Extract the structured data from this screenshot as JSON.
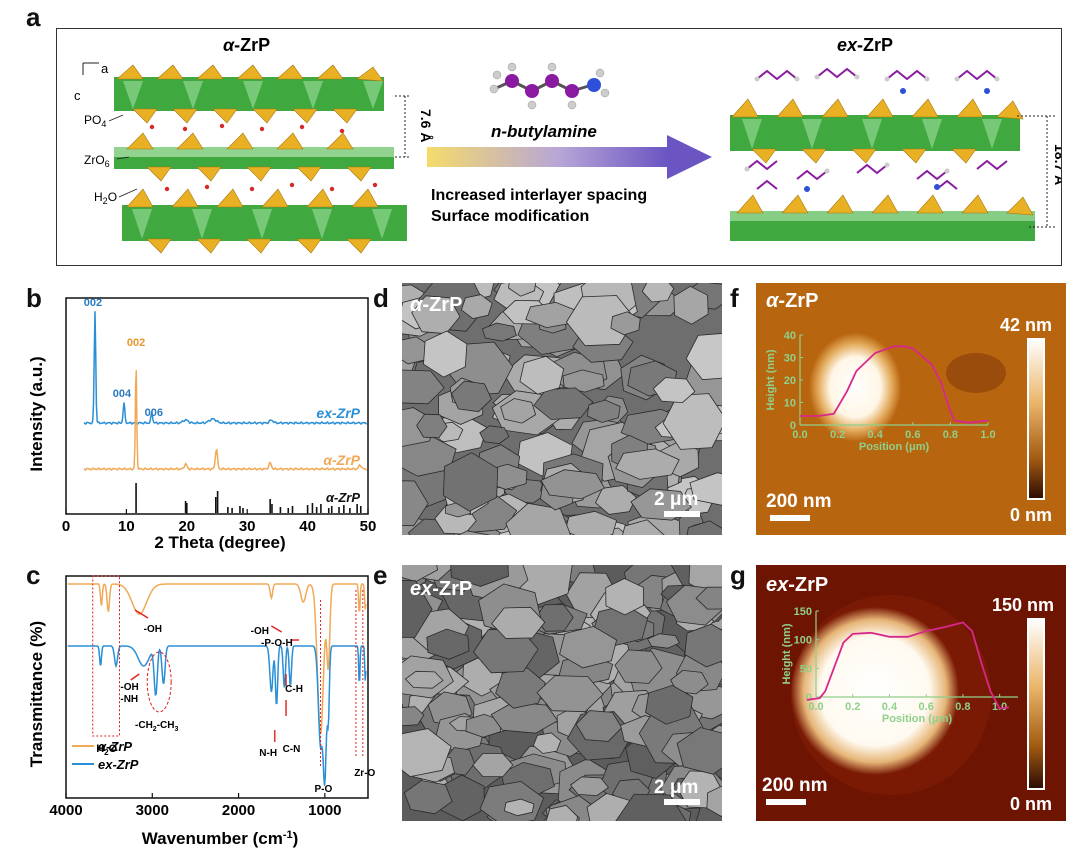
{
  "panel_letters": {
    "a": "a",
    "b": "b",
    "c": "c",
    "d": "d",
    "e": "e",
    "f": "f",
    "g": "g"
  },
  "panel_a": {
    "left_title": "α-ZrP",
    "right_title": "ex-ZrP",
    "axis_c": "c",
    "axis_a": "a",
    "label_po4": "PO",
    "label_po4_sub": "4",
    "label_zro6": "ZrO",
    "label_zro6_sub": "6",
    "label_h2o": "H",
    "label_h2o_sub": "2",
    "label_h2o_end": "O",
    "spacing_left": "7.6 Å",
    "spacing_right": "18.7 Å",
    "reagent": "n-butylamine",
    "arrow_line1": "Increased interlayer spacing",
    "arrow_line2": "Surface modification"
  },
  "panel_b": {
    "xlabel": "2 Theta (degree)",
    "ylabel": "Intensity (a.u.)",
    "peak_labels": {
      "ex_002": "002",
      "ex_004": "004",
      "ex_006": "006",
      "alpha_002": "002"
    },
    "series_labels": {
      "ex": "ex-ZrP",
      "alpha": "α-ZrP",
      "ref": "α-ZrP"
    }
  },
  "panel_c": {
    "xlabel": "Wavenumber (cm",
    "xlabel_sup": "-1",
    "xlabel_end": ")",
    "ylabel": "Transmittance (%)",
    "annotations": {
      "oh_top": "-OH",
      "oh_poh_1": "-OH",
      "oh_poh_2": "-P-O-H",
      "h2o": "H",
      "h2o_sub": "2",
      "h2o_end": "O",
      "oh_nh_1": "-OH",
      "oh_nh_2": "-NH",
      "ch2ch3": "-CH",
      "ch2ch3_sub1": "2",
      "ch2ch3_mid": "-CH",
      "ch2ch3_sub2": "3",
      "nh": "N-H",
      "ch": "C-H",
      "cn": "C-N",
      "po": "P-O",
      "zro": "Zr-O"
    },
    "legend": {
      "alpha": "α-ZrP",
      "ex": "ex-ZrP"
    }
  },
  "panel_d": {
    "label": "α-ZrP",
    "scalebar": "2 μm"
  },
  "panel_e": {
    "label": "ex-ZrP",
    "scalebar": "2 μm"
  },
  "panel_f": {
    "label": "α-ZrP",
    "scale_max": "42 nm",
    "scale_min": "0 nm",
    "scalebar": "200 nm",
    "inset_ylabel": "Height (nm)",
    "inset_xlabel": "Position (μm)"
  },
  "panel_g": {
    "label": "ex-ZrP",
    "scale_max": "150 nm",
    "scale_min": "0 nm",
    "scalebar": "200 nm",
    "inset_ylabel": "Height (nm)",
    "inset_xlabel": "Position (μm)"
  },
  "colors": {
    "ex_series": "#2a8fd6",
    "alpha_series": "#f0a957",
    "ref_bars": "#111111",
    "peak_label_ex": "#2a7ac0",
    "peak_label_alpha": "#e8962e",
    "afm_trace": "#d8288c",
    "afm_axis": "#8fd08a",
    "zro6_green": "#3aa53a",
    "po4_yellow": "#e8b022",
    "arrow_start": "#f3d35c",
    "arrow_end": "#6d5bc5",
    "annotation_red": "#e02020"
  },
  "chart_data": [
    {
      "type": "line",
      "xlabel": "2 Theta (degree)",
      "ylabel": "Intensity (a.u.)",
      "xlim": [
        0,
        50
      ],
      "xticks": [
        0,
        10,
        20,
        30,
        40,
        50
      ],
      "series": [
        {
          "name": "ex-ZrP",
          "peaks": [
            {
              "x": 4.8,
              "label": "002"
            },
            {
              "x": 9.6,
              "label": "004"
            },
            {
              "x": 14.2,
              "label": "006"
            },
            {
              "x": 19.8
            },
            {
              "x": 24.3
            },
            {
              "x": 34.0
            }
          ]
        },
        {
          "name": "α-ZrP",
          "peaks": [
            {
              "x": 11.6,
              "label": "002"
            },
            {
              "x": 19.8
            },
            {
              "x": 24.9
            },
            {
              "x": 33.8
            },
            {
              "x": 48.7
            }
          ]
        },
        {
          "name": "α-ZrP",
          "reference_bars": [
            11.6,
            19.8,
            20.0,
            24.8,
            25.1,
            26.8,
            27.5,
            28.8,
            29.3,
            33.8,
            34.1,
            35.5,
            36.8,
            37.5,
            40.0,
            40.8,
            41.5,
            42.2,
            43.5,
            44.0,
            45.2,
            46.0,
            47.0,
            48.2,
            48.8
          ]
        }
      ]
    },
    {
      "type": "line",
      "xlabel": "Wavenumber (cm-1)",
      "ylabel": "Transmittance (%)",
      "xlim": [
        4000,
        500
      ],
      "xticks": [
        4000,
        3000,
        2000,
        1000
      ],
      "series": [
        {
          "name": "α-ZrP",
          "bands": [
            3590,
            3510,
            3150,
            1620,
            1250,
            1050,
            960,
            600,
            530
          ]
        },
        {
          "name": "ex-ZrP",
          "bands": [
            3600,
            3420,
            3100,
            2960,
            2870,
            1620,
            1560,
            1470,
            1400,
            1050,
            1000,
            960,
            600,
            530
          ]
        }
      ]
    },
    {
      "type": "line",
      "title": "α-ZrP",
      "xlabel": "Position (μm)",
      "ylabel": "Height (nm)",
      "xlim": [
        0.0,
        1.0
      ],
      "ylim": [
        0,
        40
      ],
      "xticks": [
        0.0,
        0.2,
        0.4,
        0.6,
        0.8,
        1.0
      ],
      "yticks": [
        0,
        10,
        20,
        30,
        40
      ],
      "x": [
        0.0,
        0.1,
        0.18,
        0.25,
        0.3,
        0.4,
        0.5,
        0.55,
        0.6,
        0.7,
        0.75,
        0.8,
        0.82,
        0.9,
        1.0
      ],
      "y": [
        4,
        4,
        5,
        15,
        24,
        32,
        35,
        35,
        34,
        27,
        19,
        6,
        2,
        1,
        2
      ]
    },
    {
      "type": "line",
      "title": "ex-ZrP",
      "xlabel": "Position (μm)",
      "ylabel": "Height (nm)",
      "xlim": [
        0.0,
        1.1
      ],
      "ylim": [
        0,
        150
      ],
      "xticks": [
        0.0,
        0.2,
        0.4,
        0.6,
        0.8,
        1.0
      ],
      "yticks": [
        0,
        50,
        100,
        150
      ],
      "x": [
        -0.05,
        0.02,
        0.05,
        0.15,
        0.2,
        0.3,
        0.4,
        0.5,
        0.6,
        0.7,
        0.8,
        0.85,
        0.9,
        0.95,
        1.0,
        1.05
      ],
      "y": [
        -5,
        -2,
        10,
        95,
        110,
        112,
        105,
        105,
        115,
        122,
        130,
        115,
        60,
        10,
        -20,
        -18
      ]
    }
  ]
}
